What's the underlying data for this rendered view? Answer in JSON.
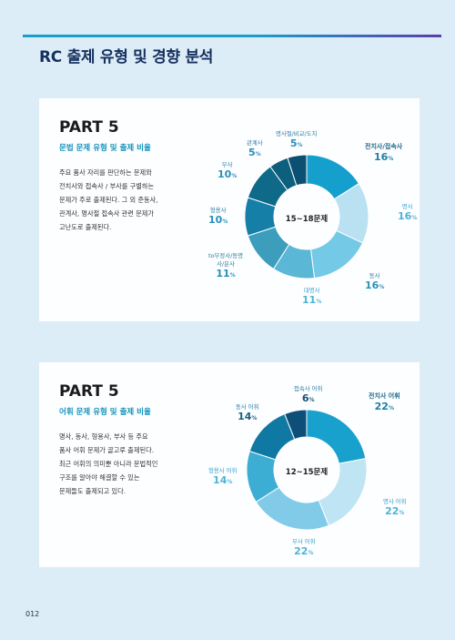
{
  "page_title": "RC 출제 유형 및 경향 분석",
  "page_number": "012",
  "colors": {
    "accent": "#1b9fc9",
    "title": "#16305f",
    "slices1": [
      "#0b4f73",
      "#159fcc",
      "#b9e1f2",
      "#74c9e6",
      "#5ab7d6",
      "#3c9dbd",
      "#157fa8",
      "#0f6a8a",
      "#0d5f7e"
    ],
    "slices2": [
      "#17a1cc",
      "#bfe4f3",
      "#82cbe8",
      "#3caed3",
      "#0f78a3",
      "#0d4f78"
    ]
  },
  "sections": [
    {
      "heading": "PART 5",
      "subtitle": "문법 문제 유형 및 출제 비율",
      "body": [
        "주요 품사 자리를 판단하는 문제와",
        "전치사와 접속사 / 부사를 구별하는",
        "문제가 주로 출제된다. 그 외 준동사,",
        "관계사, 명사절 접속사 관련 문제가",
        "고난도로 출제된다."
      ],
      "chart_data": {
        "type": "pie",
        "center_label": "15~18문제",
        "slices": [
          {
            "name": "전치사/접속사",
            "value": 16,
            "label": "16"
          },
          {
            "name": "명사",
            "value": 16,
            "label": "16"
          },
          {
            "name": "동사",
            "value": 16,
            "label": "16"
          },
          {
            "name": "대명사",
            "value": 11,
            "label": "11"
          },
          {
            "name": "to부정사/동명사/분사",
            "value": 11,
            "label": "11"
          },
          {
            "name": "형용사",
            "value": 10,
            "label": "10"
          },
          {
            "name": "부사",
            "value": 10,
            "label": "10"
          },
          {
            "name": "관계사",
            "value": 5,
            "label": "5"
          },
          {
            "name": "명사절/비교/도치",
            "value": 5,
            "label": "5"
          }
        ],
        "unit": "%"
      }
    },
    {
      "heading": "PART 5",
      "subtitle": "어휘 문제 유형 및 출제 비율",
      "body": [
        "명사, 동사, 형용사, 부사 등 주요",
        "품사 어휘 문제가 골고루 출제된다.",
        "최근 어휘의 의미뿐 아니라 문법적인",
        "구조를 알아야 해결할 수 있는",
        "문제들도 출제되고 있다."
      ],
      "chart_data": {
        "type": "pie",
        "center_label": "12~15문제",
        "slices": [
          {
            "name": "전치사 어휘",
            "value": 22,
            "label": "22"
          },
          {
            "name": "명사 어휘",
            "value": 22,
            "label": "22"
          },
          {
            "name": "부사 어휘",
            "value": 22,
            "label": "22"
          },
          {
            "name": "형용사 어휘",
            "value": 14,
            "label": "14"
          },
          {
            "name": "동사 어휘",
            "value": 14,
            "label": "14"
          },
          {
            "name": "접속사 어휘",
            "value": 6,
            "label": "6"
          }
        ],
        "unit": "%"
      }
    }
  ]
}
